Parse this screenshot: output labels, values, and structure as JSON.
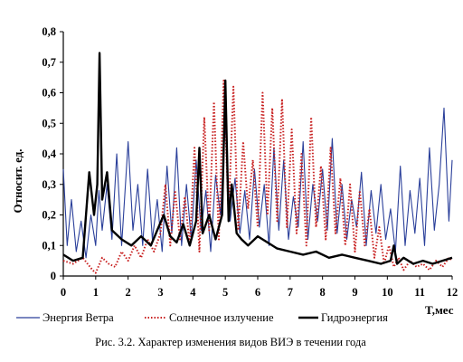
{
  "chart_data": {
    "type": "line",
    "ylabel": "Относит. ед.",
    "xlabel": "T,мес",
    "caption": "Рис. 3.2. Характер изменения видов ВИЭ в течении года",
    "xlim": [
      0,
      12
    ],
    "ylim": [
      0,
      0.8
    ],
    "x_ticks": [
      0,
      1,
      2,
      3,
      4,
      5,
      6,
      7,
      8,
      9,
      10,
      11,
      12
    ],
    "y_ticks": [
      0,
      0.1,
      0.2,
      0.3,
      0.4,
      0.5,
      0.6,
      0.7,
      0.8
    ],
    "y_tick_labels": [
      "0",
      "0,1",
      "0,2",
      "0,3",
      "0,4",
      "0,5",
      "0,6",
      "0,7",
      "0,8"
    ],
    "grid": false,
    "legend_position": "bottom",
    "series": [
      {
        "name": "Энергия Ветра",
        "style": "solid-thin",
        "color": "#2a3f9a",
        "x": [
          0,
          0.12,
          0.25,
          0.4,
          0.55,
          0.7,
          0.85,
          1.0,
          1.1,
          1.2,
          1.35,
          1.5,
          1.65,
          1.8,
          2.0,
          2.15,
          2.3,
          2.45,
          2.6,
          2.75,
          2.9,
          3.05,
          3.2,
          3.35,
          3.5,
          3.65,
          3.8,
          3.95,
          4.1,
          4.25,
          4.4,
          4.55,
          4.7,
          4.85,
          5.0,
          5.15,
          5.3,
          5.45,
          5.6,
          5.75,
          5.9,
          6.05,
          6.2,
          6.35,
          6.5,
          6.65,
          6.8,
          6.95,
          7.1,
          7.25,
          7.4,
          7.55,
          7.7,
          7.85,
          8.0,
          8.15,
          8.3,
          8.45,
          8.6,
          8.75,
          8.9,
          9.05,
          9.2,
          9.35,
          9.5,
          9.65,
          9.8,
          9.95,
          10.1,
          10.25,
          10.4,
          10.55,
          10.7,
          10.85,
          11.0,
          11.15,
          11.3,
          11.45,
          11.6,
          11.75,
          11.9,
          12.0
        ],
        "values": [
          0.35,
          0.1,
          0.25,
          0.08,
          0.18,
          0.06,
          0.2,
          0.1,
          0.28,
          0.15,
          0.3,
          0.12,
          0.4,
          0.1,
          0.44,
          0.15,
          0.3,
          0.1,
          0.35,
          0.12,
          0.25,
          0.08,
          0.36,
          0.14,
          0.42,
          0.1,
          0.3,
          0.12,
          0.38,
          0.15,
          0.28,
          0.08,
          0.33,
          0.2,
          0.5,
          0.18,
          0.32,
          0.14,
          0.28,
          0.12,
          0.35,
          0.16,
          0.3,
          0.1,
          0.42,
          0.15,
          0.38,
          0.12,
          0.26,
          0.16,
          0.44,
          0.12,
          0.3,
          0.18,
          0.35,
          0.15,
          0.45,
          0.14,
          0.3,
          0.12,
          0.25,
          0.16,
          0.34,
          0.1,
          0.28,
          0.14,
          0.3,
          0.12,
          0.22,
          0.08,
          0.36,
          0.1,
          0.28,
          0.14,
          0.32,
          0.1,
          0.42,
          0.15,
          0.3,
          0.55,
          0.18,
          0.38
        ]
      },
      {
        "name": "Солнечное излучение",
        "style": "dotted",
        "color": "#c82020",
        "x": [
          0,
          0.3,
          0.6,
          0.9,
          1.0,
          1.2,
          1.4,
          1.6,
          1.8,
          2.0,
          2.2,
          2.4,
          2.6,
          2.8,
          3.0,
          3.15,
          3.3,
          3.45,
          3.6,
          3.75,
          3.9,
          4.05,
          4.2,
          4.35,
          4.5,
          4.65,
          4.8,
          4.95,
          5.1,
          5.25,
          5.4,
          5.55,
          5.7,
          5.85,
          6.0,
          6.15,
          6.3,
          6.45,
          6.6,
          6.75,
          6.9,
          7.05,
          7.2,
          7.35,
          7.5,
          7.65,
          7.8,
          7.95,
          8.1,
          8.25,
          8.4,
          8.55,
          8.7,
          8.85,
          9.0,
          9.15,
          9.3,
          9.45,
          9.6,
          9.75,
          9.9,
          10.05,
          10.2,
          10.35,
          10.5,
          10.7,
          10.9,
          11.1,
          11.3,
          11.5,
          11.7,
          11.9,
          12.0
        ],
        "values": [
          0.05,
          0.04,
          0.06,
          0.02,
          0.01,
          0.06,
          0.04,
          0.03,
          0.08,
          0.05,
          0.1,
          0.06,
          0.12,
          0.08,
          0.14,
          0.3,
          0.1,
          0.28,
          0.12,
          0.26,
          0.1,
          0.42,
          0.08,
          0.52,
          0.15,
          0.57,
          0.12,
          0.64,
          0.2,
          0.62,
          0.15,
          0.44,
          0.22,
          0.38,
          0.16,
          0.6,
          0.2,
          0.55,
          0.18,
          0.58,
          0.16,
          0.48,
          0.14,
          0.4,
          0.1,
          0.52,
          0.16,
          0.36,
          0.12,
          0.42,
          0.14,
          0.32,
          0.1,
          0.3,
          0.08,
          0.28,
          0.1,
          0.22,
          0.06,
          0.16,
          0.04,
          0.1,
          0.03,
          0.06,
          0.02,
          0.05,
          0.03,
          0.04,
          0.02,
          0.05,
          0.03,
          0.06,
          0.05
        ]
      },
      {
        "name": "Гидроэнергия",
        "style": "solid-thick",
        "color": "#000000",
        "x": [
          0,
          0.3,
          0.6,
          0.8,
          0.95,
          1.05,
          1.12,
          1.2,
          1.35,
          1.5,
          1.8,
          2.1,
          2.4,
          2.7,
          2.9,
          3.1,
          3.3,
          3.5,
          3.7,
          3.9,
          4.1,
          4.2,
          4.3,
          4.5,
          4.7,
          4.9,
          5.0,
          5.1,
          5.2,
          5.35,
          5.5,
          5.7,
          6.0,
          6.3,
          6.6,
          7.0,
          7.4,
          7.8,
          8.2,
          8.6,
          9.0,
          9.4,
          9.8,
          10.1,
          10.2,
          10.3,
          10.5,
          10.8,
          11.1,
          11.4,
          11.7,
          12.0
        ],
        "values": [
          0.07,
          0.05,
          0.06,
          0.34,
          0.2,
          0.3,
          0.73,
          0.25,
          0.34,
          0.15,
          0.12,
          0.1,
          0.13,
          0.1,
          0.15,
          0.2,
          0.13,
          0.11,
          0.17,
          0.1,
          0.18,
          0.42,
          0.14,
          0.2,
          0.12,
          0.2,
          0.64,
          0.18,
          0.3,
          0.14,
          0.12,
          0.1,
          0.13,
          0.11,
          0.09,
          0.08,
          0.07,
          0.08,
          0.06,
          0.07,
          0.06,
          0.05,
          0.04,
          0.05,
          0.1,
          0.04,
          0.06,
          0.04,
          0.05,
          0.04,
          0.05,
          0.06
        ]
      }
    ]
  }
}
